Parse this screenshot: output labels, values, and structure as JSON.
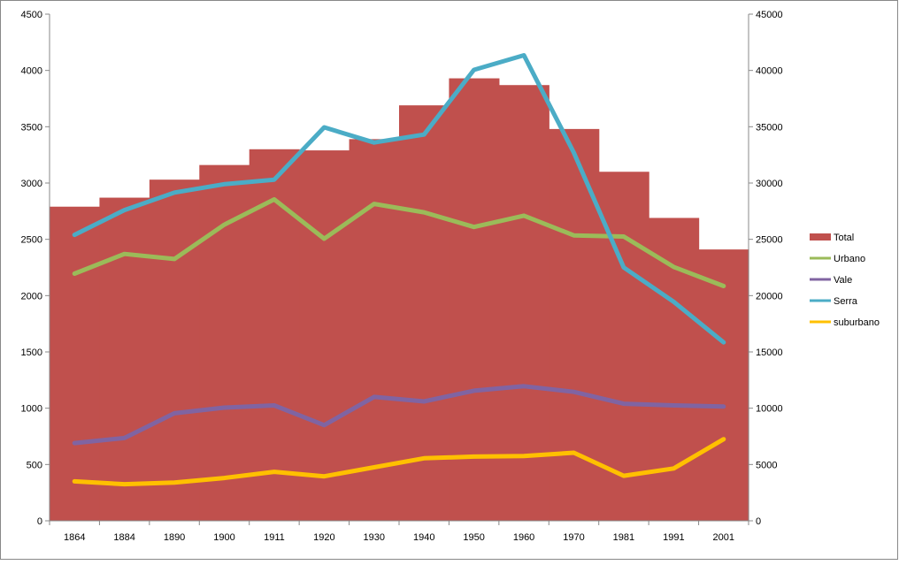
{
  "chart_data": {
    "type": "area+line",
    "categories": [
      "1864",
      "1884",
      "1890",
      "1900",
      "1911",
      "1920",
      "1930",
      "1940",
      "1950",
      "1960",
      "1970",
      "1981",
      "1991",
      "2001"
    ],
    "y_left": {
      "min": 0,
      "max": 4500,
      "step": 500,
      "ticks": [
        "0",
        "500",
        "1000",
        "1500",
        "2000",
        "2500",
        "3000",
        "3500",
        "4000",
        "4500"
      ]
    },
    "y_right": {
      "min": 0,
      "max": 45000,
      "step": 5000,
      "ticks": [
        "0",
        "5000",
        "10000",
        "15000",
        "20000",
        "25000",
        "30000",
        "35000",
        "40000",
        "45000"
      ]
    },
    "legend_position": "right",
    "grid": false,
    "series": [
      {
        "name": "Total",
        "kind": "step-area",
        "axis": "right",
        "color": "#C0504D",
        "values": [
          27900,
          28700,
          30300,
          31600,
          33000,
          32900,
          33900,
          36900,
          39300,
          38700,
          34800,
          31000,
          26900,
          24100
        ]
      },
      {
        "name": "Urbano",
        "kind": "line",
        "axis": "left",
        "color": "#9BBB59",
        "values": [
          2195,
          2370,
          2325,
          2630,
          2855,
          2505,
          2815,
          2740,
          2610,
          2710,
          2535,
          2525,
          2255,
          2085
        ]
      },
      {
        "name": "Vale",
        "kind": "line",
        "axis": "left",
        "color": "#8064A2",
        "values": [
          690,
          735,
          955,
          1005,
          1025,
          850,
          1100,
          1060,
          1155,
          1195,
          1145,
          1040,
          1025,
          1015
        ]
      },
      {
        "name": "Serra",
        "kind": "line",
        "axis": "left",
        "color": "#4BACC6",
        "values": [
          2540,
          2760,
          2915,
          2990,
          3030,
          3495,
          3360,
          3430,
          4005,
          4135,
          3270,
          2250,
          1945,
          1585
        ]
      },
      {
        "name": "suburbano",
        "kind": "line",
        "axis": "left",
        "color": "#FFC000",
        "values": [
          350,
          325,
          340,
          380,
          435,
          395,
          475,
          555,
          570,
          575,
          605,
          400,
          465,
          725
        ]
      }
    ]
  }
}
